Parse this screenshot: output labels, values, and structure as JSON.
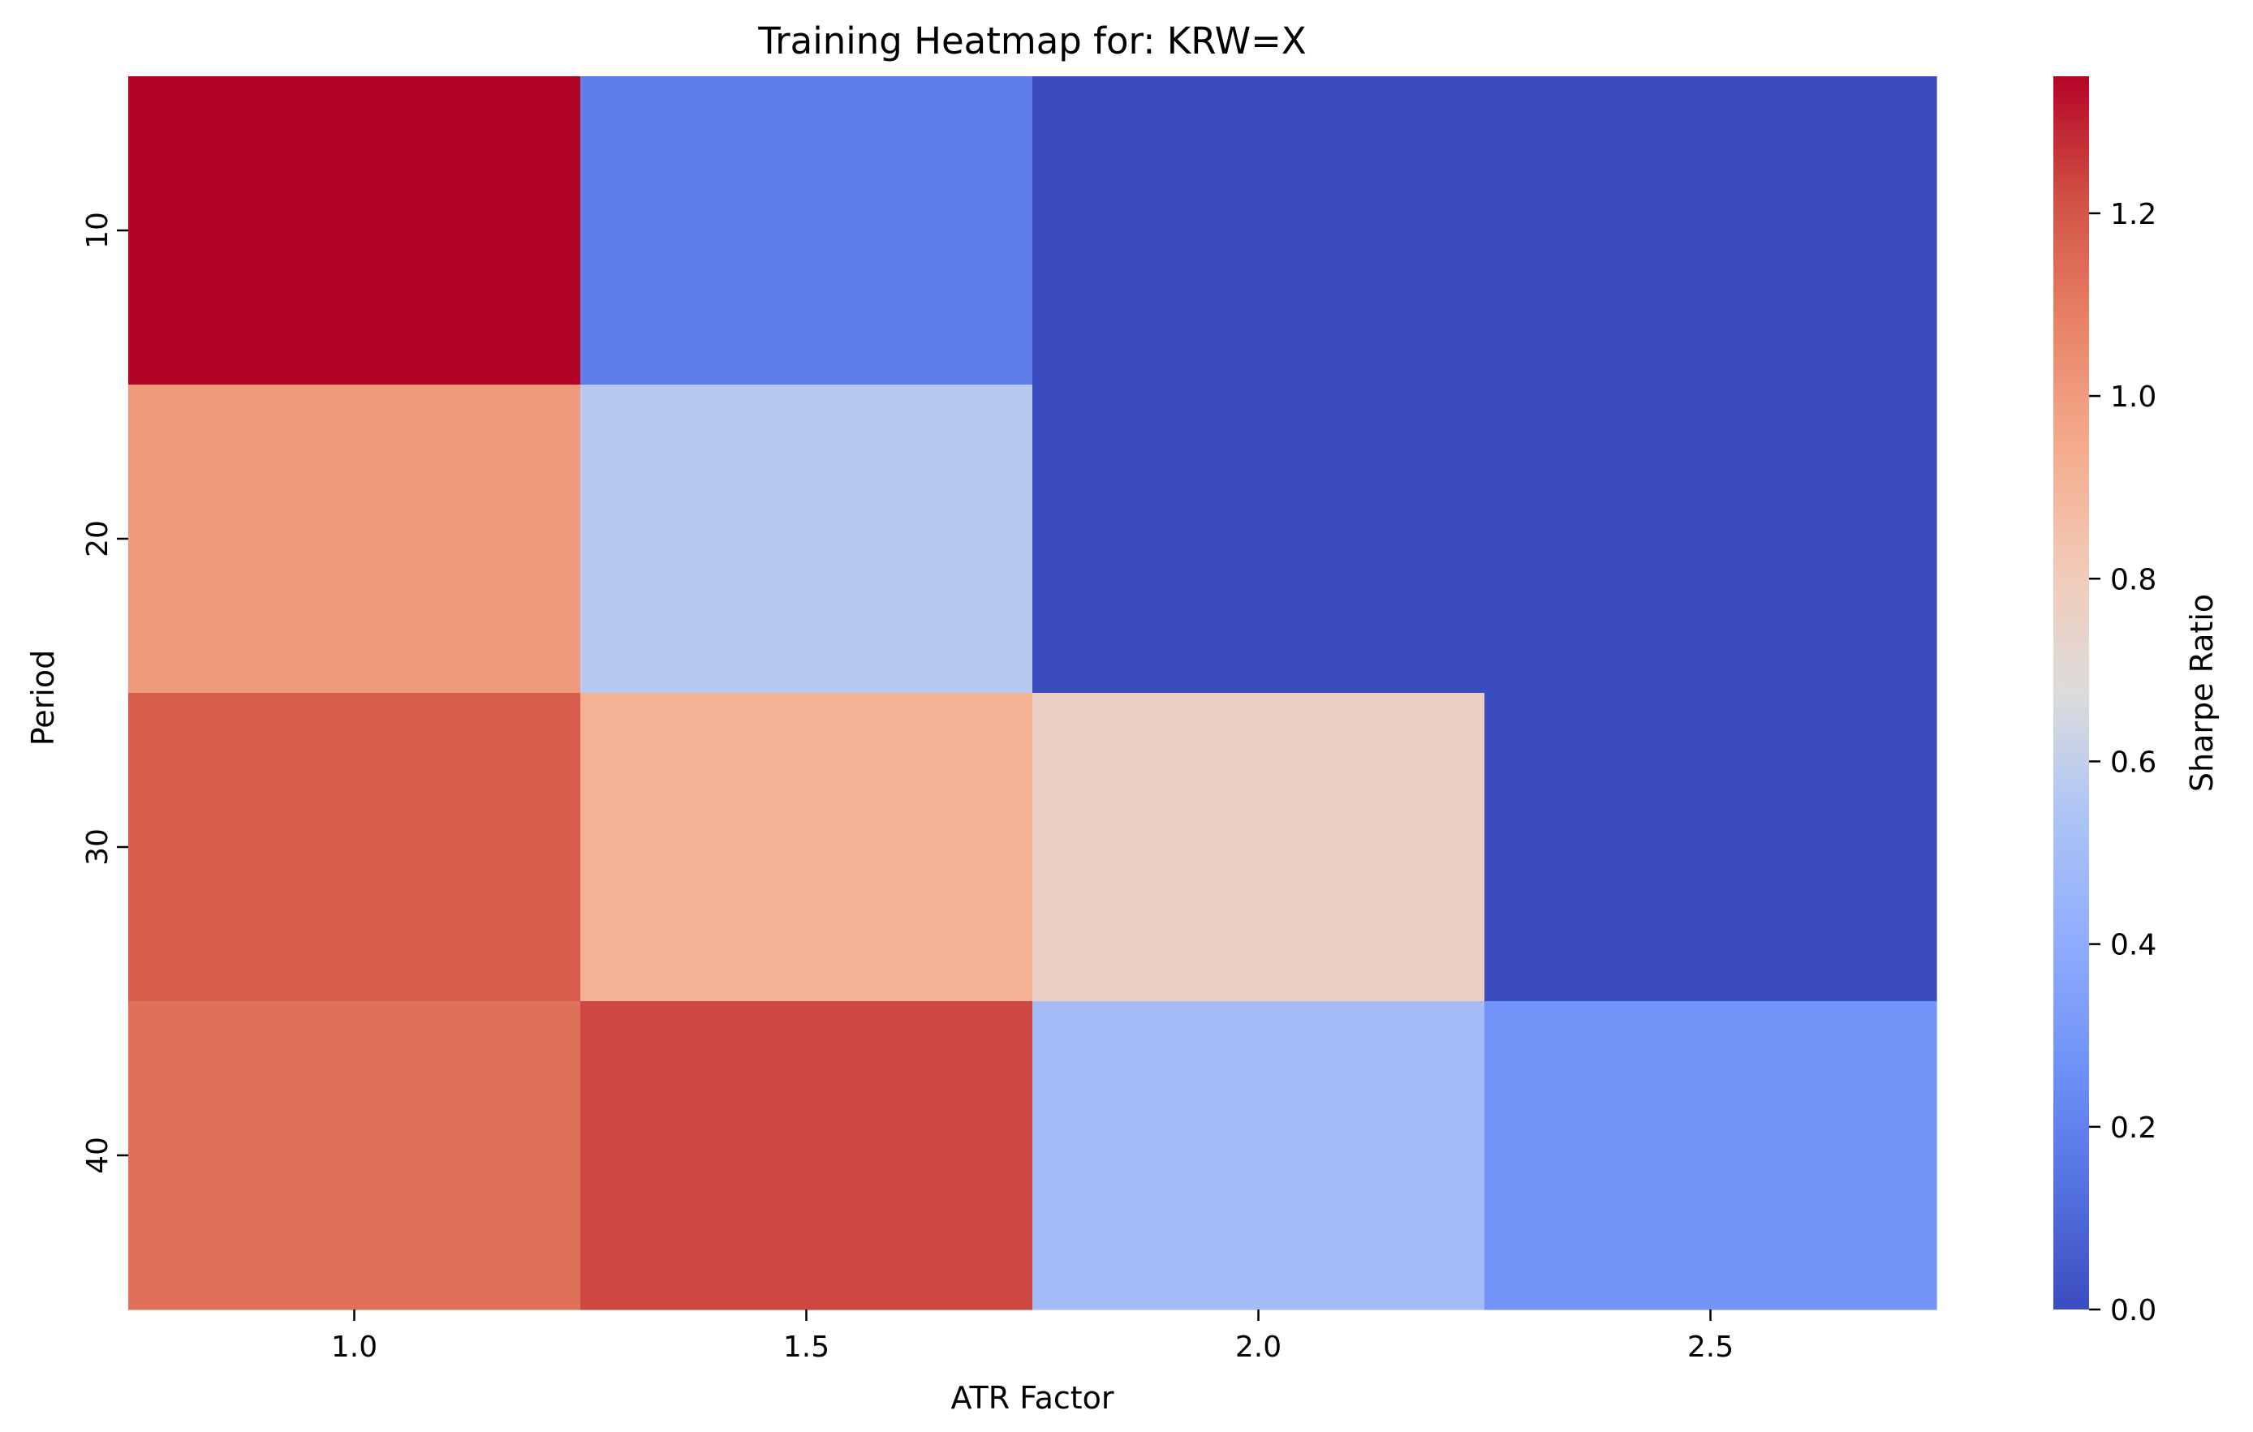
{
  "chart_data": {
    "type": "heatmap",
    "title": "Training Heatmap for: KRW=X",
    "xlabel": "ATR Factor",
    "ylabel": "Period",
    "x_categories": [
      "1.0",
      "1.5",
      "2.0",
      "2.5"
    ],
    "y_categories": [
      "10",
      "20",
      "30",
      "40"
    ],
    "values": [
      [
        1.35,
        0.19,
        0.0,
        0.0
      ],
      [
        1.0,
        0.57,
        0.0,
        0.0
      ],
      [
        1.18,
        0.92,
        0.77,
        0.0
      ],
      [
        1.13,
        1.23,
        0.5,
        0.28
      ]
    ],
    "colormap": "coolwarm",
    "colorbar": {
      "label": "Sharpe Ratio",
      "min": 0.0,
      "max": 1.35,
      "ticks": [
        "0.0",
        "0.2",
        "0.4",
        "0.6",
        "0.8",
        "1.0",
        "1.2"
      ],
      "tick_values": [
        0.0,
        0.2,
        0.4,
        0.6,
        0.8,
        1.0,
        1.2
      ]
    }
  }
}
